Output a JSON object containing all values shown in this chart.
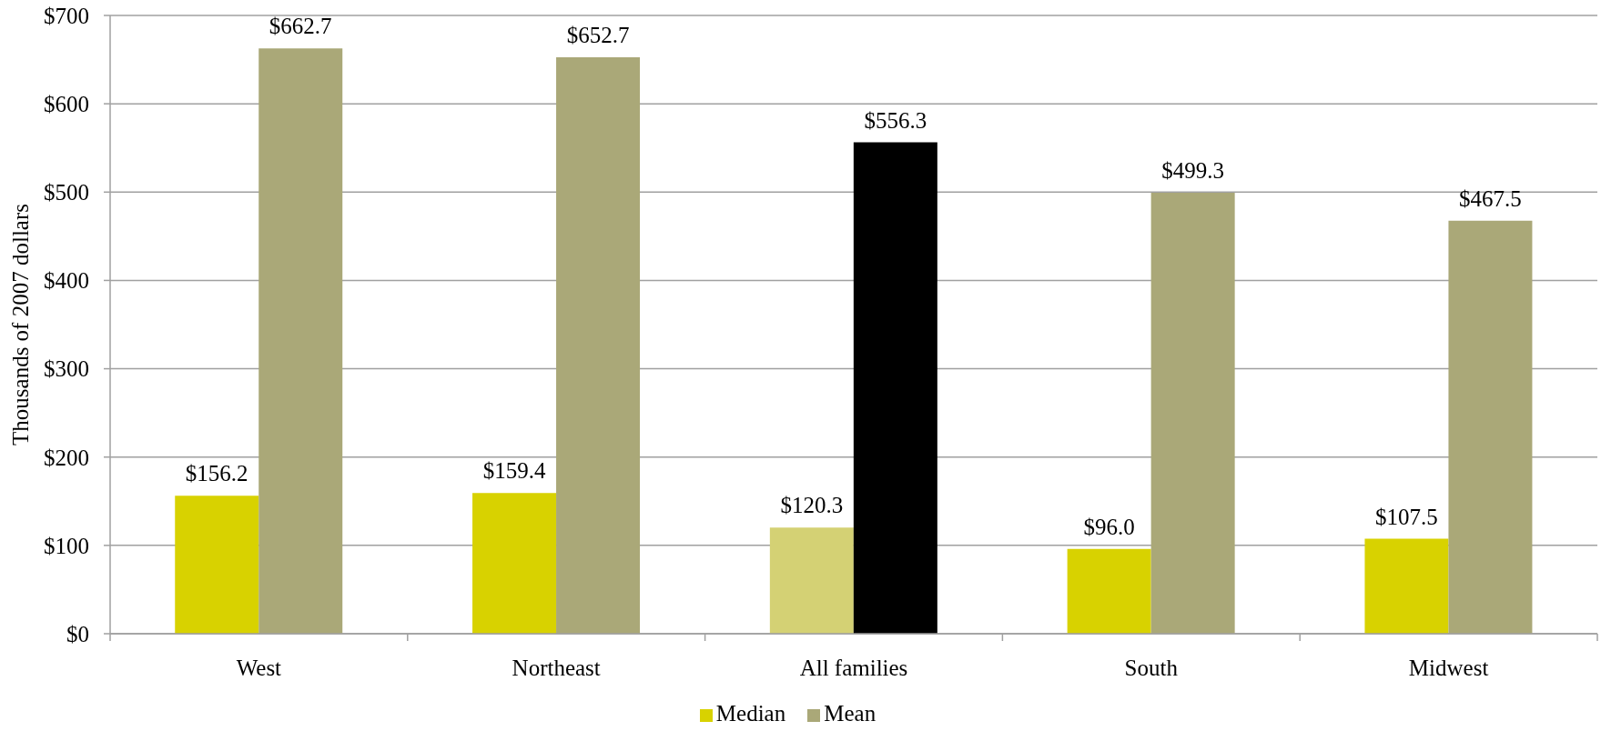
{
  "chart_data": {
    "type": "bar",
    "ylabel": "Thousands of 2007 dollars",
    "categories": [
      "West",
      "Northeast",
      "All families",
      "South",
      "Midwest"
    ],
    "series": [
      {
        "name": "Median",
        "color": "#d8d200",
        "colors": [
          "#d8d200",
          "#d8d200",
          "#d4d174",
          "#d8d200",
          "#d8d200"
        ],
        "values": [
          156.2,
          159.4,
          120.3,
          96.0,
          107.5
        ],
        "value_labels": [
          "$156.2",
          "$159.4",
          "$120.3",
          "$96.0",
          "$107.5"
        ]
      },
      {
        "name": "Mean",
        "color": "#aaa878",
        "colors": [
          "#aaa878",
          "#aaa878",
          "#000000",
          "#aaa878",
          "#aaa878"
        ],
        "values": [
          662.7,
          652.7,
          556.3,
          499.3,
          467.5
        ],
        "value_labels": [
          "$662.7",
          "$652.7",
          "$556.3",
          "$499.3",
          "$467.5"
        ]
      }
    ],
    "ylim": [
      0,
      700
    ],
    "yticks": [
      {
        "value": 0,
        "label": "$0"
      },
      {
        "value": 100,
        "label": "$100"
      },
      {
        "value": 200,
        "label": "$200"
      },
      {
        "value": 300,
        "label": "$300"
      },
      {
        "value": 400,
        "label": "$400"
      },
      {
        "value": 500,
        "label": "$500"
      },
      {
        "value": 600,
        "label": "$600"
      },
      {
        "value": 700,
        "label": "$700"
      }
    ],
    "grid": "y",
    "legend": "bottom"
  }
}
